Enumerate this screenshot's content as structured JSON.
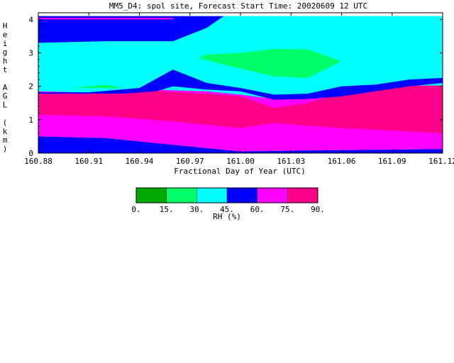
{
  "chart_data": {
    "type": "heatmap",
    "title": "MM5_D4: spol site,  Forecast Start Time: 20020609 12 UTC",
    "xlabel": "Fractional Day of Year (UTC)",
    "ylabel": "Height AGL (km)",
    "xlim": [
      160.88,
      161.12
    ],
    "ylim": [
      0,
      4.2
    ],
    "x_ticks": [
      "160.88",
      "160.91",
      "160.94",
      "160.97",
      "161.00",
      "161.03",
      "161.06",
      "161.09",
      "161.12"
    ],
    "y_ticks": [
      "0",
      "1",
      "2",
      "3",
      "4"
    ],
    "colorbar": {
      "label": "RH (%)",
      "ticks": [
        "0.",
        "15.",
        "30.",
        "45.",
        "60.",
        "75.",
        "90."
      ],
      "colors": [
        "#00aa00",
        "#00ff66",
        "#00ffff",
        "#0000ff",
        "#ff00ff",
        "#ff0088"
      ]
    },
    "regions": [
      {
        "level": "45-60",
        "color": "#0000ff",
        "points": [
          [
            160.88,
            0
          ],
          [
            161.12,
            0
          ],
          [
            161.12,
            0.12
          ],
          [
            161.04,
            0.08
          ],
          [
            161.0,
            0.05
          ],
          [
            160.96,
            0.25
          ],
          [
            160.92,
            0.45
          ],
          [
            160.88,
            0.5
          ]
        ]
      },
      {
        "level": "60-75",
        "color": "#ff00ff",
        "points": [
          [
            160.88,
            0.5
          ],
          [
            160.92,
            0.45
          ],
          [
            160.96,
            0.25
          ],
          [
            161.0,
            0.05
          ],
          [
            161.04,
            0.08
          ],
          [
            161.12,
            0.12
          ],
          [
            161.12,
            2.02
          ],
          [
            161.1,
            2.02
          ],
          [
            161.08,
            1.95
          ],
          [
            161.06,
            1.8
          ],
          [
            161.04,
            1.7
          ],
          [
            161.02,
            1.62
          ],
          [
            161.0,
            1.75
          ],
          [
            160.98,
            1.85
          ],
          [
            160.96,
            1.88
          ],
          [
            160.95,
            1.9
          ],
          [
            160.92,
            1.8
          ],
          [
            160.88,
            1.85
          ]
        ]
      },
      {
        "level": "75-90",
        "color": "#ff0088",
        "points": [
          [
            160.88,
            1.15
          ],
          [
            160.92,
            1.1
          ],
          [
            160.96,
            0.95
          ],
          [
            161.0,
            0.75
          ],
          [
            161.02,
            0.9
          ],
          [
            161.06,
            0.75
          ],
          [
            161.12,
            0.6
          ],
          [
            161.12,
            2.02
          ],
          [
            161.1,
            2.02
          ],
          [
            161.08,
            1.95
          ],
          [
            161.06,
            1.8
          ],
          [
            161.04,
            1.5
          ],
          [
            161.02,
            1.35
          ],
          [
            161.0,
            1.7
          ],
          [
            160.98,
            1.78
          ],
          [
            160.96,
            1.83
          ],
          [
            160.95,
            1.86
          ],
          [
            160.92,
            1.8
          ],
          [
            160.88,
            1.8
          ]
        ]
      },
      {
        "level": "45-60",
        "color": "#0000ff",
        "points": [
          [
            160.88,
            1.78
          ],
          [
            160.93,
            1.78
          ],
          [
            160.95,
            1.85
          ],
          [
            160.96,
            2.0
          ],
          [
            160.98,
            1.9
          ],
          [
            161.0,
            1.85
          ],
          [
            161.02,
            1.6
          ],
          [
            161.04,
            1.62
          ],
          [
            161.06,
            1.7
          ],
          [
            161.08,
            1.85
          ],
          [
            161.1,
            2.0
          ],
          [
            161.12,
            2.1
          ],
          [
            161.12,
            2.25
          ],
          [
            161.1,
            2.2
          ],
          [
            161.08,
            2.05
          ],
          [
            161.06,
            2.0
          ],
          [
            161.04,
            1.78
          ],
          [
            161.02,
            1.75
          ],
          [
            161.0,
            1.95
          ],
          [
            160.98,
            2.1
          ],
          [
            160.96,
            2.5
          ],
          [
            160.94,
            1.95
          ],
          [
            160.91,
            1.82
          ],
          [
            160.88,
            1.82
          ]
        ]
      },
      {
        "level": "45-60",
        "color": "#0000ff",
        "points": [
          [
            160.88,
            3.3
          ],
          [
            160.92,
            3.35
          ],
          [
            160.96,
            3.35
          ],
          [
            160.98,
            3.75
          ],
          [
            160.99,
            4.1
          ],
          [
            160.88,
            4.1
          ]
        ]
      },
      {
        "level": "60-75",
        "color": "#ff00ff",
        "points": [
          [
            160.88,
            4.05
          ],
          [
            160.96,
            4.05
          ],
          [
            160.96,
            4.0
          ],
          [
            160.88,
            4.0
          ]
        ]
      },
      {
        "level": "15-30",
        "color": "#00ff66",
        "points": [
          [
            160.9,
            1.95
          ],
          [
            160.92,
            2.05
          ],
          [
            160.93,
            1.95
          ]
        ]
      },
      {
        "level": "15-30",
        "color": "#00ff66",
        "points": [
          [
            160.975,
            2.85
          ],
          [
            160.99,
            2.65
          ],
          [
            161.02,
            2.3
          ],
          [
            161.04,
            2.25
          ],
          [
            161.06,
            2.75
          ],
          [
            161.04,
            3.1
          ],
          [
            161.02,
            3.12
          ],
          [
            161.0,
            3.0
          ],
          [
            160.98,
            2.95
          ]
        ]
      }
    ]
  }
}
